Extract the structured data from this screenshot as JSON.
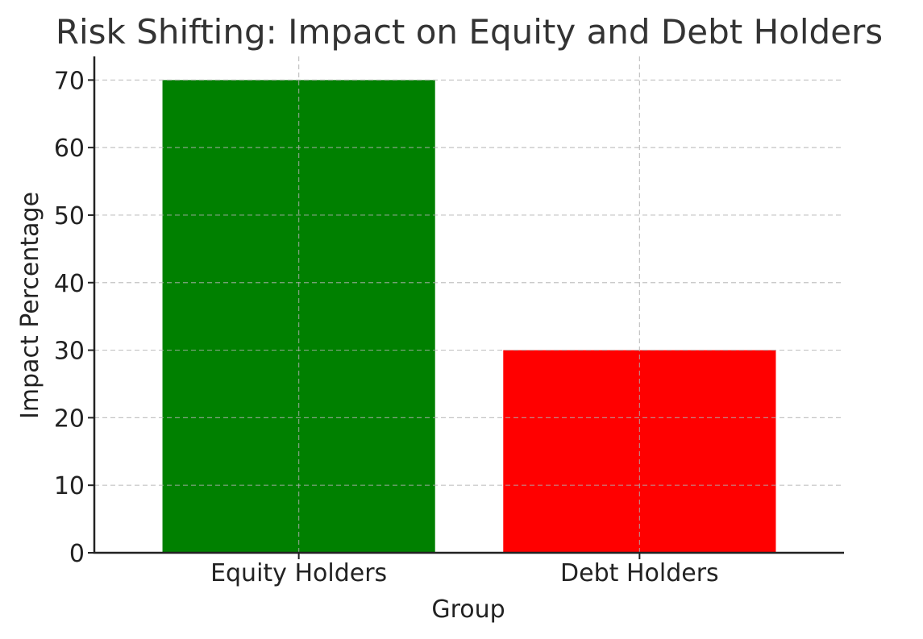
{
  "chart_data": {
    "type": "bar",
    "title": "Risk Shifting: Impact on Equity and Debt Holders",
    "xlabel": "Group",
    "ylabel": "Impact Percentage",
    "categories": [
      "Equity Holders",
      "Debt Holders"
    ],
    "values": [
      70,
      30
    ],
    "colors": [
      "#008000",
      "#ff0000"
    ],
    "ylim": [
      0,
      73.5
    ],
    "yticks": [
      0,
      10,
      20,
      30,
      40,
      50,
      60,
      70
    ],
    "grid": true,
    "legend": "none"
  }
}
